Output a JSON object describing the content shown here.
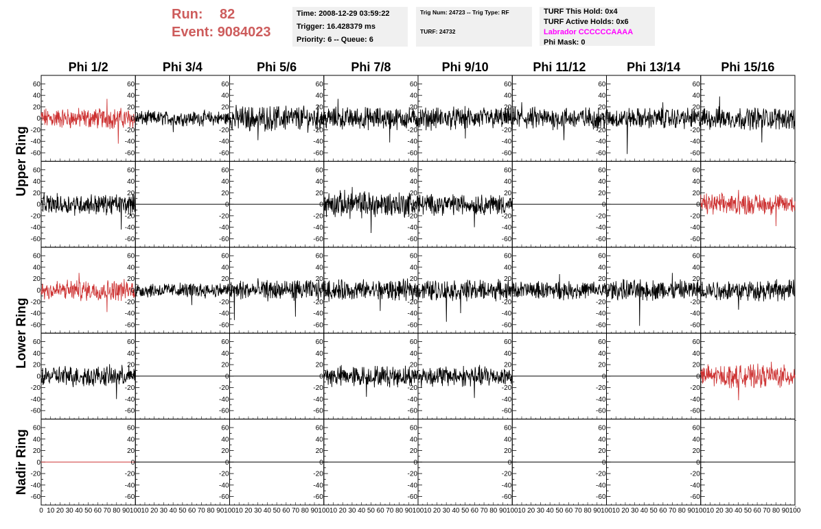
{
  "run_info": {
    "run_label": "Run:",
    "run_value": "82",
    "event_label": "Event:",
    "event_value": "9084023"
  },
  "info_box_1": {
    "time": "Time: 2008-12-29 03:59:22",
    "trigger": "Trigger: 16.428379 ms",
    "priority": "Priority: 6 -- Queue: 6"
  },
  "info_box_2": {
    "trig": "Trig Num: 24723 -- Trig Type: RF",
    "turf": "TURF: 24732"
  },
  "info_box_3": {
    "this_hold": "TURF This Hold: 0x4",
    "active_holds": "TURF Active Holds: 0x6",
    "labrador": "Labrador CCCCCCAAAA",
    "phi_mask": "Phi Mask: 0"
  },
  "colors": {
    "trace_normal": "#000000",
    "trace_highlight": "#cd3333",
    "run_text": "#cd5c5c",
    "info_bg": "#f0f0f0",
    "labrador_text": "#ff00ff"
  },
  "chart_data": {
    "type": "line",
    "columns": [
      "Phi 1/2",
      "Phi 3/4",
      "Phi 5/6",
      "Phi 7/8",
      "Phi 9/10",
      "Phi 11/12",
      "Phi 13/14",
      "Phi 15/16"
    ],
    "ring_labels": [
      "Upper Ring",
      "Lower Ring",
      "Nadir Ring"
    ],
    "ring_row_spans": [
      2,
      2,
      1
    ],
    "xlim": [
      0,
      100
    ],
    "ylim": [
      -70,
      70
    ],
    "x_tick_labels": [
      "0",
      "10",
      "20",
      "30",
      "40",
      "50",
      "60",
      "70",
      "80",
      "90",
      "100"
    ],
    "y_tick_labels": [
      "-60",
      "-40",
      "-20",
      "0",
      "20",
      "40",
      "60"
    ],
    "rows": [
      [
        {
          "mode": "noise",
          "amp": 14,
          "color": "red",
          "spikes": [
            [
              70,
              34
            ],
            [
              82,
              -44
            ]
          ]
        },
        {
          "mode": "noise",
          "amp": 10,
          "color": "black",
          "spikes": [
            [
              40,
              -24
            ]
          ]
        },
        {
          "mode": "noise",
          "amp": 17,
          "color": "black",
          "spikes": [
            [
              30,
              -38
            ],
            [
              60,
              22
            ]
          ]
        },
        {
          "mode": "noise",
          "amp": 15,
          "color": "black",
          "spikes": [
            [
              15,
              34
            ],
            [
              70,
              -42
            ]
          ]
        },
        {
          "mode": "noise",
          "amp": 15,
          "color": "black",
          "spikes": [
            [
              50,
              -35
            ]
          ]
        },
        {
          "mode": "noise",
          "amp": 15,
          "color": "black",
          "spikes": [
            [
              10,
              28
            ],
            [
              55,
              -38
            ]
          ]
        },
        {
          "mode": "noise",
          "amp": 14,
          "color": "black",
          "spikes": [
            [
              22,
              -62
            ],
            [
              60,
              28
            ]
          ]
        },
        {
          "mode": "noise",
          "amp": 15,
          "color": "black",
          "spikes": [
            [
              20,
              38
            ],
            [
              65,
              -42
            ]
          ]
        }
      ],
      [
        {
          "mode": "noise",
          "amp": 14,
          "color": "black",
          "spikes": [
            [
              85,
              -44
            ]
          ]
        },
        {
          "mode": "flat",
          "color": "black"
        },
        {
          "mode": "flat",
          "color": "black"
        },
        {
          "mode": "noise",
          "amp": 18,
          "color": "black",
          "spikes": [
            [
              30,
              30
            ],
            [
              50,
              -50
            ]
          ]
        },
        {
          "mode": "noise",
          "amp": 14,
          "color": "black",
          "spikes": [
            [
              60,
              -40
            ]
          ]
        },
        {
          "mode": "flat",
          "color": "black"
        },
        {
          "mode": "flat",
          "color": "black"
        },
        {
          "mode": "noise",
          "amp": 14,
          "color": "red",
          "spikes": [
            [
              40,
              25
            ],
            [
              80,
              -38
            ]
          ]
        }
      ],
      [
        {
          "mode": "noise",
          "amp": 14,
          "color": "red",
          "spikes": [
            [
              40,
              30
            ],
            [
              70,
              -38
            ]
          ]
        },
        {
          "mode": "noise",
          "amp": 10,
          "color": "black",
          "spikes": [
            [
              60,
              -26
            ]
          ]
        },
        {
          "mode": "noise",
          "amp": 14,
          "color": "black",
          "spikes": [
            [
              5,
              -52
            ],
            [
              70,
              -46
            ]
          ]
        },
        {
          "mode": "noise",
          "amp": 14,
          "color": "black",
          "spikes": [
            [
              60,
              -36
            ]
          ]
        },
        {
          "mode": "noise",
          "amp": 14,
          "color": "black",
          "spikes": [
            [
              30,
              -55
            ],
            [
              45,
              -40
            ]
          ]
        },
        {
          "mode": "noise",
          "amp": 12,
          "color": "black",
          "spikes": [
            [
              50,
              28
            ]
          ]
        },
        {
          "mode": "noise",
          "amp": 14,
          "color": "black",
          "spikes": [
            [
              35,
              -62
            ],
            [
              70,
              30
            ]
          ]
        },
        {
          "mode": "noise",
          "amp": 14,
          "color": "black",
          "spikes": [
            [
              40,
              -34
            ]
          ]
        }
      ],
      [
        {
          "mode": "noise",
          "amp": 14,
          "color": "black",
          "spikes": [
            [
              80,
              -40
            ]
          ]
        },
        {
          "mode": "flat",
          "color": "black"
        },
        {
          "mode": "flat",
          "color": "black"
        },
        {
          "mode": "noise",
          "amp": 14,
          "color": "black",
          "spikes": [
            [
              45,
              -36
            ]
          ]
        },
        {
          "mode": "noise",
          "amp": 14,
          "color": "black",
          "spikes": [
            [
              60,
              -38
            ]
          ]
        },
        {
          "mode": "flat",
          "color": "black"
        },
        {
          "mode": "flat",
          "color": "black"
        },
        {
          "mode": "noise",
          "amp": 15,
          "color": "red",
          "spikes": [
            [
              40,
              -42
            ],
            [
              75,
              25
            ]
          ]
        }
      ],
      [
        {
          "mode": "flat",
          "color": "red"
        },
        {
          "mode": "flat",
          "color": "black"
        },
        {
          "mode": "flat",
          "color": "black"
        },
        {
          "mode": "flat",
          "color": "black"
        },
        {
          "mode": "flat",
          "color": "black"
        },
        {
          "mode": "flat",
          "color": "black"
        },
        {
          "mode": "flat",
          "color": "black"
        },
        {
          "mode": "flat",
          "color": "black"
        }
      ]
    ]
  }
}
